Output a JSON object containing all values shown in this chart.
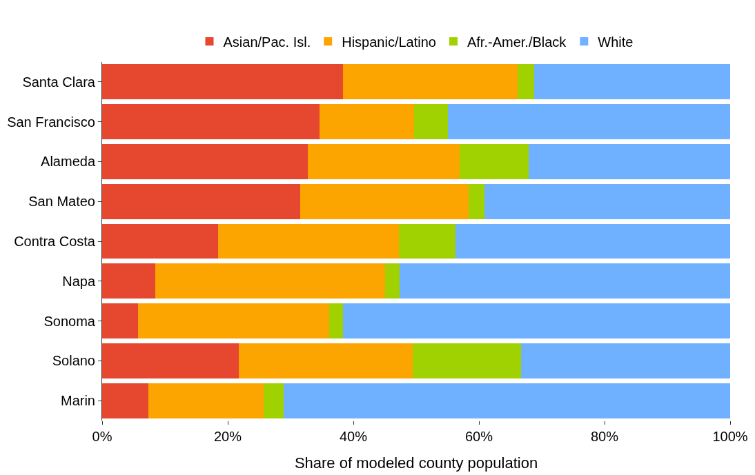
{
  "chart_data": {
    "type": "bar",
    "orientation": "horizontal",
    "stacked": true,
    "xlabel": "Share of modeled county population",
    "categories": [
      "Santa Clara",
      "San Francisco",
      "Alameda",
      "San Mateo",
      "Contra Costa",
      "Napa",
      "Sonoma",
      "Solano",
      "Marin"
    ],
    "series": [
      {
        "name": "Asian/Pac. Isl.",
        "color": "#e5472f",
        "values": [
          38.3,
          34.6,
          32.7,
          31.5,
          18.5,
          8.5,
          5.7,
          21.8,
          7.4
        ]
      },
      {
        "name": "Hispanic/Latino",
        "color": "#fca500",
        "values": [
          27.8,
          15.1,
          24.2,
          26.8,
          28.8,
          36.6,
          30.4,
          27.7,
          18.3
        ]
      },
      {
        "name": "Afr.-Amer./Black",
        "color": "#a0d100",
        "values": [
          2.7,
          5.3,
          11.0,
          2.6,
          9.0,
          2.3,
          2.2,
          17.2,
          3.2
        ]
      },
      {
        "name": "White",
        "color": "#6fb1ff",
        "values": [
          31.2,
          45.0,
          32.1,
          39.1,
          43.7,
          52.6,
          61.7,
          33.3,
          71.1
        ]
      }
    ],
    "xlim": [
      0,
      100
    ],
    "xticks": [
      {
        "value": 0,
        "label": "0%"
      },
      {
        "value": 20,
        "label": "20%"
      },
      {
        "value": 40,
        "label": "40%"
      },
      {
        "value": 60,
        "label": "60%"
      },
      {
        "value": 80,
        "label": "80%"
      },
      {
        "value": 100,
        "label": "100%"
      }
    ],
    "legend": "top"
  }
}
